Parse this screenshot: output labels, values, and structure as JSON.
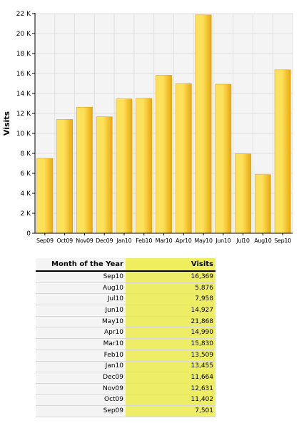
{
  "chart_data": {
    "type": "bar",
    "categories": [
      "Sep09",
      "Oct09",
      "Nov09",
      "Dec09",
      "Jan10",
      "Feb10",
      "Mar10",
      "Apr10",
      "May10",
      "Jun10",
      "Jul10",
      "Aug10",
      "Sep10"
    ],
    "values": [
      7501,
      11402,
      12631,
      11664,
      13455,
      13509,
      15830,
      14990,
      21868,
      14927,
      7958,
      5876,
      16369
    ],
    "title": "",
    "xlabel": "",
    "ylabel": "Visits",
    "ylim": [
      0,
      22000
    ],
    "yticks": [
      0,
      2000,
      4000,
      6000,
      8000,
      10000,
      12000,
      14000,
      16000,
      18000,
      20000,
      22000
    ],
    "ytick_labels": [
      "0",
      "2 K",
      "4 K",
      "6 K",
      "8 K",
      "10 K",
      "12 K",
      "14 K",
      "16 K",
      "18 K",
      "20 K",
      "22 K"
    ],
    "grid": true,
    "colors": {
      "bar_light": "#fde15a",
      "bar_dark": "#e9a80e",
      "plot_bg": "#f4f4f4",
      "grid": "#e0e0e0"
    }
  },
  "table": {
    "headers": [
      "Month of the Year",
      "Visits"
    ],
    "rows": [
      [
        "Sep10",
        "16,369"
      ],
      [
        "Aug10",
        "5,876"
      ],
      [
        "Jul10",
        "7,958"
      ],
      [
        "Jun10",
        "14,927"
      ],
      [
        "May10",
        "21,868"
      ],
      [
        "Apr10",
        "14,990"
      ],
      [
        "Mar10",
        "15,830"
      ],
      [
        "Feb10",
        "13,509"
      ],
      [
        "Jan10",
        "13,455"
      ],
      [
        "Dec09",
        "11,664"
      ],
      [
        "Nov09",
        "12,631"
      ],
      [
        "Oct09",
        "11,402"
      ],
      [
        "Sep09",
        "7,501"
      ]
    ]
  }
}
